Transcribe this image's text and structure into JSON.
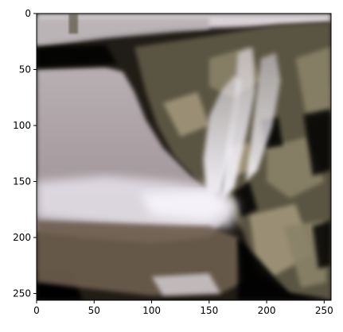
{
  "chart_data": {
    "type": "heatmap",
    "subtype": "image",
    "title": "",
    "xlabel": "",
    "ylabel": "",
    "xlim": [
      0,
      256
    ],
    "ylim": [
      256,
      0
    ],
    "y_axis_inverted": true,
    "grid": false,
    "x_ticks": [
      0,
      50,
      100,
      150,
      200,
      250
    ],
    "y_ticks": [
      0,
      50,
      100,
      150,
      200,
      250
    ],
    "image_content": "waterfall"
  },
  "colors": {
    "sky": "#b3adb0",
    "sky_haze": "#d8d2d6",
    "lake": "#9a8e92",
    "lake_light": "#b8afb3",
    "mist": "#e6e2ea",
    "falls": "#ece8f2",
    "foam": "#f4f2f8",
    "cliff_dark": "#201c16",
    "cliff_mid": "#5a5442",
    "cliff_light": "#8a8268",
    "foliage": "#a2967a",
    "ground": "#6e5e50",
    "shadow": "#050505",
    "axis": "#000000"
  }
}
